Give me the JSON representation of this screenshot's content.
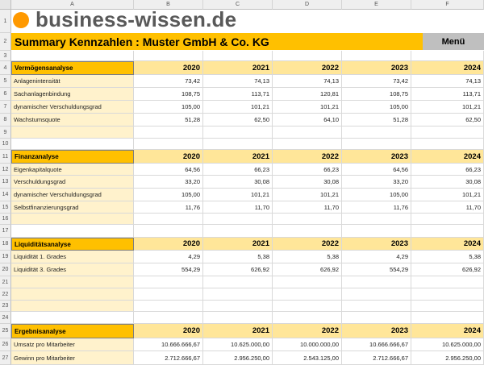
{
  "columns": [
    "A",
    "B",
    "C",
    "D",
    "E",
    "F"
  ],
  "rows": [
    "1",
    "2",
    "3",
    "4",
    "5",
    "6",
    "7",
    "8",
    "9",
    "10",
    "11",
    "12",
    "13",
    "14",
    "15",
    "16",
    "17",
    "18",
    "19",
    "20",
    "21",
    "22",
    "23",
    "24",
    "25",
    "26",
    "27"
  ],
  "logo": {
    "text": "business-wissen.de",
    "dot_color": "#ff9900"
  },
  "title": "Summary Kennzahlen : Muster GmbH & Co. KG",
  "menu_label": "Menü",
  "years": [
    "2020",
    "2021",
    "2022",
    "2023",
    "2024"
  ],
  "sections": [
    {
      "label": "Vermögensanalyse",
      "items": [
        {
          "name": "Anlagenintensität",
          "values": [
            "73,42",
            "74,13",
            "74,13",
            "73,42",
            "74,13"
          ]
        },
        {
          "name": "Sachanlagenbindung",
          "values": [
            "108,75",
            "113,71",
            "120,81",
            "108,75",
            "113,71"
          ]
        },
        {
          "name": "dynamischer Verschuldungsgrad",
          "values": [
            "105,00",
            "101,21",
            "101,21",
            "105,00",
            "101,21"
          ]
        },
        {
          "name": "Wachstumsquote",
          "values": [
            "51,28",
            "62,50",
            "64,10",
            "51,28",
            "62,50"
          ]
        }
      ]
    },
    {
      "label": "Finanzanalyse",
      "items": [
        {
          "name": "Eigenkapitalquote",
          "values": [
            "64,56",
            "66,23",
            "66,23",
            "64,56",
            "66,23"
          ]
        },
        {
          "name": "Verschuldungsgrad",
          "values": [
            "33,20",
            "30,08",
            "30,08",
            "33,20",
            "30,08"
          ]
        },
        {
          "name": "dynamischer Verschuldungsgrad",
          "values": [
            "105,00",
            "101,21",
            "101,21",
            "105,00",
            "101,21"
          ]
        },
        {
          "name": "Selbstfinanzierungsgrad",
          "values": [
            "11,76",
            "11,70",
            "11,70",
            "11,76",
            "11,70"
          ]
        }
      ]
    },
    {
      "label": "Liquiditätsanalyse",
      "items": [
        {
          "name": "Liquidität 1. Grades",
          "values": [
            "4,29",
            "5,38",
            "5,38",
            "4,29",
            "5,38"
          ]
        },
        {
          "name": "Liquidität 3. Grades",
          "values": [
            "554,29",
            "626,92",
            "626,92",
            "554,29",
            "626,92"
          ]
        }
      ]
    },
    {
      "label": "Ergebnisanalyse",
      "items": [
        {
          "name": "Umsatz pro Mitarbeiter",
          "values": [
            "10.666.666,67",
            "10.625.000,00",
            "10.000.000,00",
            "10.666.666,67",
            "10.625.000,00"
          ]
        },
        {
          "name": "Gewinn pro Mitarbeiter",
          "values": [
            "2.712.666,67",
            "2.956.250,00",
            "2.543.125,00",
            "2.712.666,67",
            "2.956.250,00"
          ]
        }
      ]
    }
  ]
}
